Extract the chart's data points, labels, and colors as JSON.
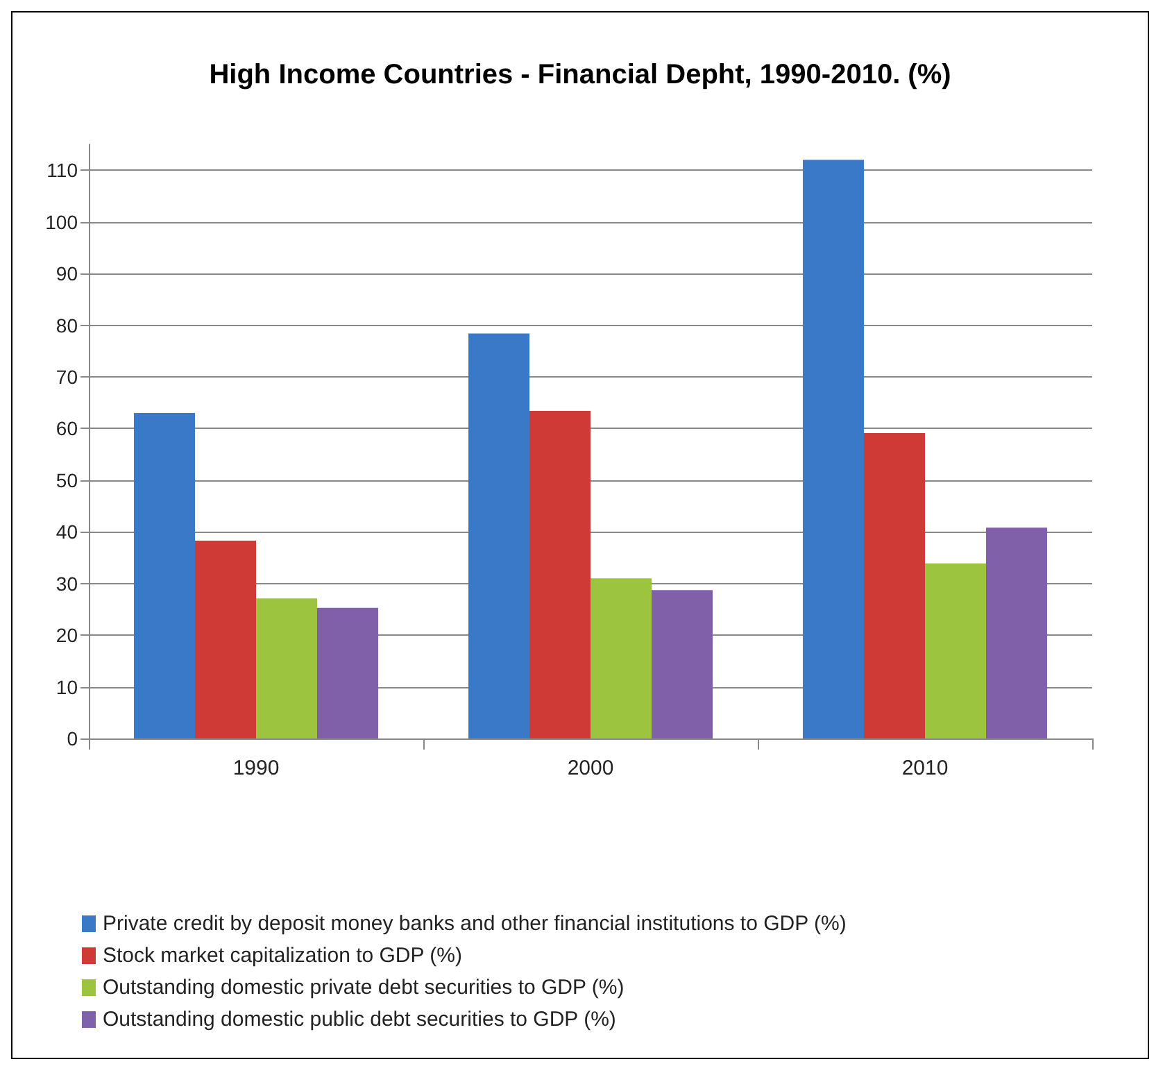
{
  "chart_data": {
    "type": "bar",
    "title": "High Income Countries - Financial Depht, 1990-2010. (%)",
    "categories": [
      "1990",
      "2000",
      "2010"
    ],
    "series": [
      {
        "name": "Private credit by deposit money banks and other financial institutions to GDP (%)",
        "color": "#3a78c8",
        "values": [
          63,
          78.4,
          112
        ]
      },
      {
        "name": "Stock market capitalization to GDP (%)",
        "color": "#d03a36",
        "values": [
          38.3,
          63.4,
          59.1
        ]
      },
      {
        "name": "Outstanding domestic private debt securities to GDP (%)",
        "color": "#9cc43e",
        "values": [
          27.1,
          31,
          33.9
        ]
      },
      {
        "name": "Outstanding domestic public debt securities to GDP (%)",
        "color": "#8060a8",
        "values": [
          25.3,
          28.7,
          40.8
        ]
      }
    ],
    "ylim": [
      0,
      115
    ],
    "yticks": [
      0,
      10,
      20,
      30,
      40,
      50,
      60,
      70,
      80,
      90,
      100,
      110
    ],
    "grid": "y",
    "legend": "bottom"
  }
}
